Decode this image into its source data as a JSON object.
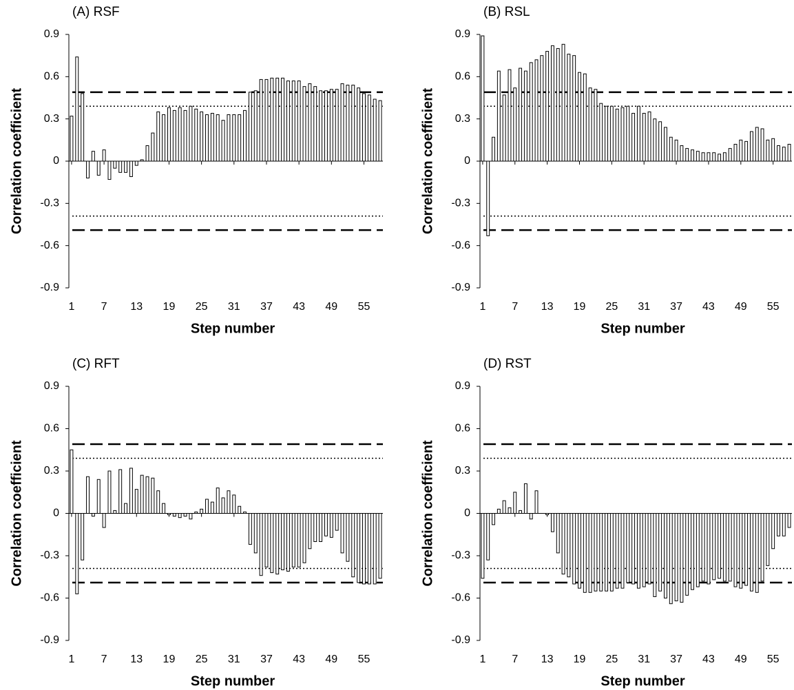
{
  "chart_data": [
    {
      "type": "bar",
      "title": "(A) RSF",
      "xlabel": "Step number",
      "ylabel": "Correlation coefficient",
      "color": "#ffffff",
      "edgecolor": "#000000",
      "x": [
        1,
        2,
        3,
        4,
        5,
        6,
        7,
        8,
        9,
        10,
        11,
        12,
        13,
        14,
        15,
        16,
        17,
        18,
        19,
        20,
        21,
        22,
        23,
        24,
        25,
        26,
        27,
        28,
        29,
        30,
        31,
        32,
        33,
        34,
        35,
        36,
        37,
        38,
        39,
        40,
        41,
        42,
        43,
        44,
        45,
        46,
        47,
        48,
        49,
        50,
        51,
        52,
        53,
        54,
        55,
        56,
        57,
        58
      ],
      "values": [
        0.32,
        0.74,
        0.48,
        -0.12,
        0.07,
        -0.1,
        0.08,
        -0.13,
        -0.05,
        -0.08,
        -0.08,
        -0.11,
        -0.03,
        0.01,
        0.11,
        0.2,
        0.35,
        0.33,
        0.38,
        0.36,
        0.38,
        0.36,
        0.39,
        0.37,
        0.35,
        0.33,
        0.34,
        0.33,
        0.29,
        0.33,
        0.33,
        0.33,
        0.36,
        0.49,
        0.5,
        0.58,
        0.58,
        0.59,
        0.59,
        0.59,
        0.57,
        0.57,
        0.57,
        0.53,
        0.55,
        0.53,
        0.5,
        0.5,
        0.51,
        0.51,
        0.55,
        0.54,
        0.54,
        0.52,
        0.48,
        0.47,
        0.44,
        0.43
      ],
      "xlim": [
        0.5,
        58.5
      ],
      "xticks": [
        1,
        7,
        13,
        19,
        25,
        31,
        37,
        43,
        49,
        55
      ],
      "ylim": [
        -0.9,
        0.9
      ],
      "yticks": [
        0.9,
        0.6,
        0.3,
        0,
        -0.3,
        -0.6,
        -0.9
      ],
      "reference_lines": [
        {
          "value": 0.49,
          "style": "dashed"
        },
        {
          "value": -0.49,
          "style": "dashed"
        },
        {
          "value": 0.39,
          "style": "dotted"
        },
        {
          "value": -0.39,
          "style": "dotted"
        }
      ]
    },
    {
      "type": "bar",
      "title": "(B) RSL",
      "xlabel": "Step number",
      "ylabel": "Correlation coefficient",
      "color": "#ffffff",
      "edgecolor": "#000000",
      "x": [
        1,
        2,
        3,
        4,
        5,
        6,
        7,
        8,
        9,
        10,
        11,
        12,
        13,
        14,
        15,
        16,
        17,
        18,
        19,
        20,
        21,
        22,
        23,
        24,
        25,
        26,
        27,
        28,
        29,
        30,
        31,
        32,
        33,
        34,
        35,
        36,
        37,
        38,
        39,
        40,
        41,
        42,
        43,
        44,
        45,
        46,
        47,
        48,
        49,
        50,
        51,
        52,
        53,
        54,
        55,
        56,
        57,
        58
      ],
      "values": [
        0.89,
        -0.53,
        0.17,
        0.64,
        0.47,
        0.65,
        0.52,
        0.66,
        0.64,
        0.7,
        0.72,
        0.75,
        0.78,
        0.82,
        0.8,
        0.83,
        0.76,
        0.75,
        0.63,
        0.62,
        0.52,
        0.51,
        0.41,
        0.39,
        0.39,
        0.37,
        0.38,
        0.39,
        0.34,
        0.39,
        0.34,
        0.35,
        0.3,
        0.28,
        0.24,
        0.17,
        0.15,
        0.11,
        0.09,
        0.08,
        0.07,
        0.06,
        0.06,
        0.06,
        0.05,
        0.06,
        0.09,
        0.12,
        0.15,
        0.14,
        0.21,
        0.24,
        0.23,
        0.15,
        0.16,
        0.11,
        0.1,
        0.12
      ],
      "xlim": [
        0.5,
        58.5
      ],
      "xticks": [
        1,
        7,
        13,
        19,
        25,
        31,
        37,
        43,
        49,
        55
      ],
      "ylim": [
        -0.9,
        0.9
      ],
      "yticks": [
        0.9,
        0.6,
        0.3,
        0,
        -0.3,
        -0.6,
        -0.9
      ],
      "reference_lines": [
        {
          "value": 0.49,
          "style": "dashed"
        },
        {
          "value": -0.49,
          "style": "dashed"
        },
        {
          "value": 0.39,
          "style": "dotted"
        },
        {
          "value": -0.39,
          "style": "dotted"
        }
      ]
    },
    {
      "type": "bar",
      "title": "(C) RFT",
      "xlabel": "Step number",
      "ylabel": "Correlation coefficient",
      "color": "#ffffff",
      "edgecolor": "#000000",
      "x": [
        1,
        2,
        3,
        4,
        5,
        6,
        7,
        8,
        9,
        10,
        11,
        12,
        13,
        14,
        15,
        16,
        17,
        18,
        19,
        20,
        21,
        22,
        23,
        24,
        25,
        26,
        27,
        28,
        29,
        30,
        31,
        32,
        33,
        34,
        35,
        36,
        37,
        38,
        39,
        40,
        41,
        42,
        43,
        44,
        45,
        46,
        47,
        48,
        49,
        50,
        51,
        52,
        53,
        54,
        55,
        56,
        57,
        58
      ],
      "values": [
        0.45,
        -0.57,
        -0.33,
        0.26,
        -0.02,
        0.24,
        -0.1,
        0.3,
        0.02,
        0.31,
        0.07,
        0.32,
        0.17,
        0.27,
        0.26,
        0.25,
        0.16,
        0.07,
        -0.01,
        -0.02,
        -0.03,
        -0.02,
        -0.04,
        0.01,
        0.03,
        0.1,
        0.08,
        0.18,
        0.11,
        0.16,
        0.13,
        0.05,
        0.01,
        -0.22,
        -0.28,
        -0.44,
        -0.38,
        -0.42,
        -0.43,
        -0.4,
        -0.41,
        -0.38,
        -0.38,
        -0.35,
        -0.25,
        -0.2,
        -0.2,
        -0.16,
        -0.17,
        -0.12,
        -0.28,
        -0.34,
        -0.45,
        -0.49,
        -0.5,
        -0.5,
        -0.5,
        -0.46
      ],
      "xlim": [
        0.5,
        58.5
      ],
      "xticks": [
        1,
        7,
        13,
        19,
        25,
        31,
        37,
        43,
        49,
        55
      ],
      "ylim": [
        -0.9,
        0.9
      ],
      "yticks": [
        0.9,
        0.6,
        0.3,
        0,
        -0.3,
        -0.6,
        -0.9
      ],
      "reference_lines": [
        {
          "value": 0.49,
          "style": "dashed"
        },
        {
          "value": -0.49,
          "style": "dashed"
        },
        {
          "value": 0.39,
          "style": "dotted"
        },
        {
          "value": -0.39,
          "style": "dotted"
        }
      ]
    },
    {
      "type": "bar",
      "title": "(D) RST",
      "xlabel": "Step number",
      "ylabel": "Correlation coefficient",
      "color": "#ffffff",
      "edgecolor": "#000000",
      "x": [
        1,
        2,
        3,
        4,
        5,
        6,
        7,
        8,
        9,
        10,
        11,
        12,
        13,
        14,
        15,
        16,
        17,
        18,
        19,
        20,
        21,
        22,
        23,
        24,
        25,
        26,
        27,
        28,
        29,
        30,
        31,
        32,
        33,
        34,
        35,
        36,
        37,
        38,
        39,
        40,
        41,
        42,
        43,
        44,
        45,
        46,
        47,
        48,
        49,
        50,
        51,
        52,
        53,
        54,
        55,
        56,
        57,
        58
      ],
      "values": [
        -0.46,
        -0.33,
        -0.08,
        0.03,
        0.09,
        0.04,
        0.15,
        0.02,
        0.21,
        -0.04,
        0.16,
        0.0,
        -0.01,
        -0.13,
        -0.28,
        -0.43,
        -0.45,
        -0.5,
        -0.53,
        -0.56,
        -0.56,
        -0.55,
        -0.55,
        -0.55,
        -0.55,
        -0.53,
        -0.53,
        -0.49,
        -0.5,
        -0.53,
        -0.52,
        -0.5,
        -0.59,
        -0.55,
        -0.6,
        -0.64,
        -0.62,
        -0.63,
        -0.58,
        -0.54,
        -0.52,
        -0.48,
        -0.5,
        -0.47,
        -0.46,
        -0.48,
        -0.48,
        -0.52,
        -0.53,
        -0.51,
        -0.55,
        -0.56,
        -0.48,
        -0.37,
        -0.25,
        -0.16,
        -0.16,
        -0.1
      ],
      "xlim": [
        0.5,
        58.5
      ],
      "xticks": [
        1,
        7,
        13,
        19,
        25,
        31,
        37,
        43,
        49,
        55
      ],
      "ylim": [
        -0.9,
        0.9
      ],
      "yticks": [
        0.9,
        0.6,
        0.3,
        0,
        -0.3,
        -0.6,
        -0.9
      ],
      "reference_lines": [
        {
          "value": 0.49,
          "style": "dashed"
        },
        {
          "value": -0.49,
          "style": "dashed"
        },
        {
          "value": 0.39,
          "style": "dotted"
        },
        {
          "value": -0.39,
          "style": "dotted"
        }
      ]
    }
  ]
}
